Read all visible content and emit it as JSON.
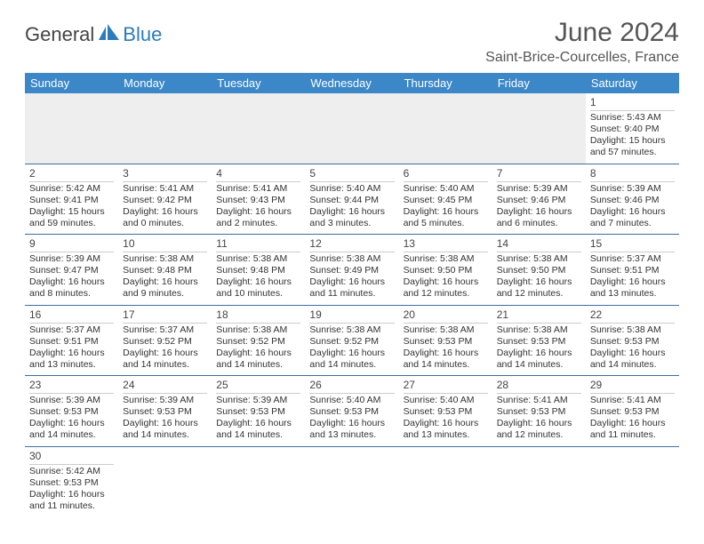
{
  "logo": {
    "part1": "General",
    "part2": "Blue"
  },
  "title": "June 2024",
  "location": "Saint-Brice-Courcelles, France",
  "weekdays": [
    "Sunday",
    "Monday",
    "Tuesday",
    "Wednesday",
    "Thursday",
    "Friday",
    "Saturday"
  ],
  "colors": {
    "header_bg": "#3b87c8",
    "accent": "#2b7bbd",
    "row_border": "#3b6fa0"
  },
  "weeks": [
    [
      null,
      null,
      null,
      null,
      null,
      null,
      {
        "n": "1",
        "sr": "Sunrise: 5:43 AM",
        "ss": "Sunset: 9:40 PM",
        "dl": "Daylight: 15 hours and 57 minutes."
      }
    ],
    [
      {
        "n": "2",
        "sr": "Sunrise: 5:42 AM",
        "ss": "Sunset: 9:41 PM",
        "dl": "Daylight: 15 hours and 59 minutes."
      },
      {
        "n": "3",
        "sr": "Sunrise: 5:41 AM",
        "ss": "Sunset: 9:42 PM",
        "dl": "Daylight: 16 hours and 0 minutes."
      },
      {
        "n": "4",
        "sr": "Sunrise: 5:41 AM",
        "ss": "Sunset: 9:43 PM",
        "dl": "Daylight: 16 hours and 2 minutes."
      },
      {
        "n": "5",
        "sr": "Sunrise: 5:40 AM",
        "ss": "Sunset: 9:44 PM",
        "dl": "Daylight: 16 hours and 3 minutes."
      },
      {
        "n": "6",
        "sr": "Sunrise: 5:40 AM",
        "ss": "Sunset: 9:45 PM",
        "dl": "Daylight: 16 hours and 5 minutes."
      },
      {
        "n": "7",
        "sr": "Sunrise: 5:39 AM",
        "ss": "Sunset: 9:46 PM",
        "dl": "Daylight: 16 hours and 6 minutes."
      },
      {
        "n": "8",
        "sr": "Sunrise: 5:39 AM",
        "ss": "Sunset: 9:46 PM",
        "dl": "Daylight: 16 hours and 7 minutes."
      }
    ],
    [
      {
        "n": "9",
        "sr": "Sunrise: 5:39 AM",
        "ss": "Sunset: 9:47 PM",
        "dl": "Daylight: 16 hours and 8 minutes."
      },
      {
        "n": "10",
        "sr": "Sunrise: 5:38 AM",
        "ss": "Sunset: 9:48 PM",
        "dl": "Daylight: 16 hours and 9 minutes."
      },
      {
        "n": "11",
        "sr": "Sunrise: 5:38 AM",
        "ss": "Sunset: 9:48 PM",
        "dl": "Daylight: 16 hours and 10 minutes."
      },
      {
        "n": "12",
        "sr": "Sunrise: 5:38 AM",
        "ss": "Sunset: 9:49 PM",
        "dl": "Daylight: 16 hours and 11 minutes."
      },
      {
        "n": "13",
        "sr": "Sunrise: 5:38 AM",
        "ss": "Sunset: 9:50 PM",
        "dl": "Daylight: 16 hours and 12 minutes."
      },
      {
        "n": "14",
        "sr": "Sunrise: 5:38 AM",
        "ss": "Sunset: 9:50 PM",
        "dl": "Daylight: 16 hours and 12 minutes."
      },
      {
        "n": "15",
        "sr": "Sunrise: 5:37 AM",
        "ss": "Sunset: 9:51 PM",
        "dl": "Daylight: 16 hours and 13 minutes."
      }
    ],
    [
      {
        "n": "16",
        "sr": "Sunrise: 5:37 AM",
        "ss": "Sunset: 9:51 PM",
        "dl": "Daylight: 16 hours and 13 minutes."
      },
      {
        "n": "17",
        "sr": "Sunrise: 5:37 AM",
        "ss": "Sunset: 9:52 PM",
        "dl": "Daylight: 16 hours and 14 minutes."
      },
      {
        "n": "18",
        "sr": "Sunrise: 5:38 AM",
        "ss": "Sunset: 9:52 PM",
        "dl": "Daylight: 16 hours and 14 minutes."
      },
      {
        "n": "19",
        "sr": "Sunrise: 5:38 AM",
        "ss": "Sunset: 9:52 PM",
        "dl": "Daylight: 16 hours and 14 minutes."
      },
      {
        "n": "20",
        "sr": "Sunrise: 5:38 AM",
        "ss": "Sunset: 9:53 PM",
        "dl": "Daylight: 16 hours and 14 minutes."
      },
      {
        "n": "21",
        "sr": "Sunrise: 5:38 AM",
        "ss": "Sunset: 9:53 PM",
        "dl": "Daylight: 16 hours and 14 minutes."
      },
      {
        "n": "22",
        "sr": "Sunrise: 5:38 AM",
        "ss": "Sunset: 9:53 PM",
        "dl": "Daylight: 16 hours and 14 minutes."
      }
    ],
    [
      {
        "n": "23",
        "sr": "Sunrise: 5:39 AM",
        "ss": "Sunset: 9:53 PM",
        "dl": "Daylight: 16 hours and 14 minutes."
      },
      {
        "n": "24",
        "sr": "Sunrise: 5:39 AM",
        "ss": "Sunset: 9:53 PM",
        "dl": "Daylight: 16 hours and 14 minutes."
      },
      {
        "n": "25",
        "sr": "Sunrise: 5:39 AM",
        "ss": "Sunset: 9:53 PM",
        "dl": "Daylight: 16 hours and 14 minutes."
      },
      {
        "n": "26",
        "sr": "Sunrise: 5:40 AM",
        "ss": "Sunset: 9:53 PM",
        "dl": "Daylight: 16 hours and 13 minutes."
      },
      {
        "n": "27",
        "sr": "Sunrise: 5:40 AM",
        "ss": "Sunset: 9:53 PM",
        "dl": "Daylight: 16 hours and 13 minutes."
      },
      {
        "n": "28",
        "sr": "Sunrise: 5:41 AM",
        "ss": "Sunset: 9:53 PM",
        "dl": "Daylight: 16 hours and 12 minutes."
      },
      {
        "n": "29",
        "sr": "Sunrise: 5:41 AM",
        "ss": "Sunset: 9:53 PM",
        "dl": "Daylight: 16 hours and 11 minutes."
      }
    ],
    [
      {
        "n": "30",
        "sr": "Sunrise: 5:42 AM",
        "ss": "Sunset: 9:53 PM",
        "dl": "Daylight: 16 hours and 11 minutes."
      },
      null,
      null,
      null,
      null,
      null,
      null
    ]
  ]
}
